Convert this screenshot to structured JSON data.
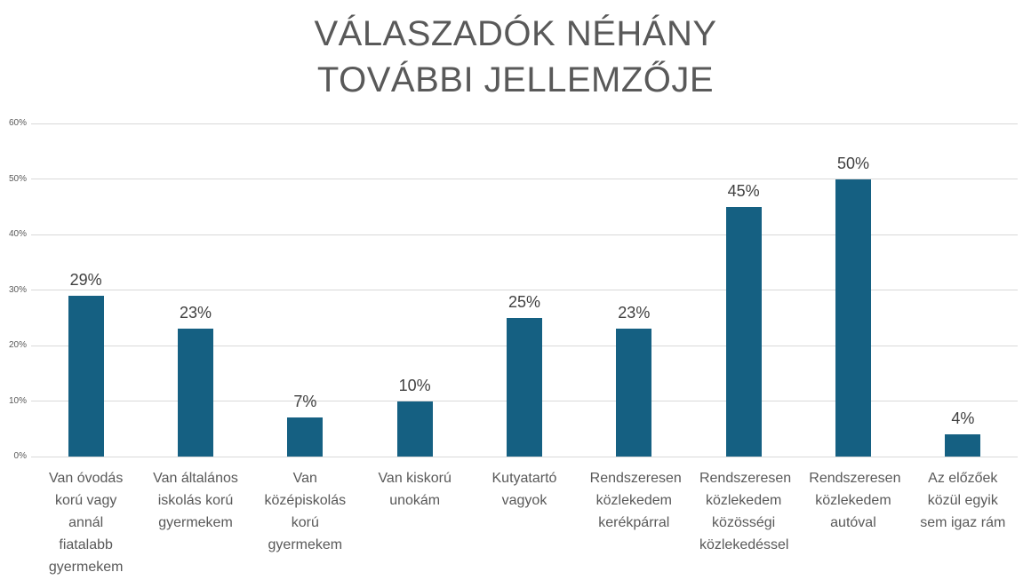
{
  "title": {
    "line1": "VÁLASZADÓK NÉHÁNY",
    "line2": "TOVÁBBI JELLEMZŐJE"
  },
  "colors": {
    "bar": "#156082",
    "gridline": "#D9D9D9",
    "title_text": "#595959",
    "axis_text": "#595959",
    "category_text": "#595959",
    "data_label_text": "#404040",
    "background": "#FFFFFF"
  },
  "chart_data": {
    "type": "bar",
    "title": "VÁLASZADÓK NÉHÁNY TOVÁBBI JELLEMZŐJE",
    "categories": [
      "Van óvodás korú vagy annál fiatalabb gyermekem",
      "Van általános iskolás korú gyermekem",
      "Van középiskolás korú gyermekem",
      "Van kiskorú unokám",
      "Kutyatartó vagyok",
      "Rendszeresen közlekedem kerékpárral",
      "Rendszeresen közlekedem közösségi közlekedéssel",
      "Rendszeresen közlekedem autóval",
      "Az előzőek közül egyik sem igaz rám"
    ],
    "values": [
      29,
      23,
      7,
      10,
      25,
      23,
      45,
      50,
      4
    ],
    "data_labels": [
      "29%",
      "23%",
      "7%",
      "10%",
      "25%",
      "23%",
      "45%",
      "50%",
      "4%"
    ],
    "y_ticks": [
      "0%",
      "10%",
      "20%",
      "30%",
      "40%",
      "50%",
      "60%"
    ],
    "ylim": [
      0,
      60
    ],
    "xlabel": "",
    "ylabel": "",
    "grid": true,
    "legend": "none"
  }
}
